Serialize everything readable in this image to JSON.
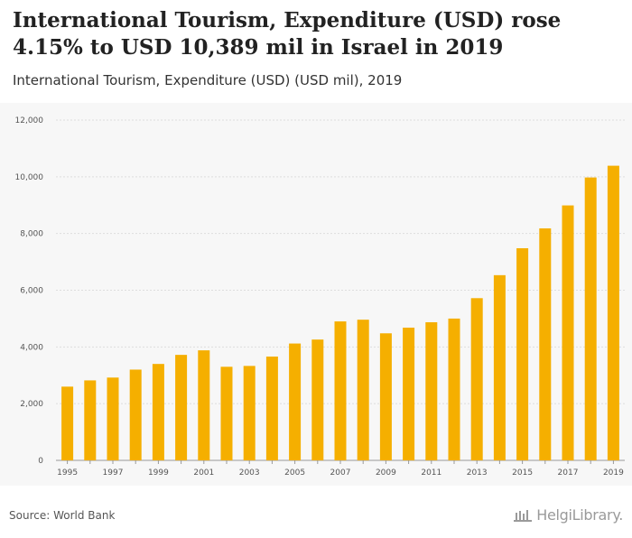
{
  "header": {
    "title": "International Tourism, Expenditure (USD) rose 4.15% to USD 10,389 mil in Israel in 2019",
    "subtitle": "International Tourism, Expenditure (USD) (USD mil), 2019"
  },
  "footer": {
    "source": "Source: World Bank",
    "brand": "HelgiLibrary."
  },
  "colors": {
    "bar": "#F5AF00",
    "grid": "#dddddd",
    "background": "#f7f7f7"
  },
  "chart_data": {
    "type": "bar",
    "title": "International Tourism, Expenditure (USD) (USD mil), 2019",
    "xlabel": "",
    "ylabel": "USD mil",
    "ylim": [
      0,
      12000
    ],
    "yticks": [
      0,
      2000,
      4000,
      6000,
      8000,
      10000,
      12000
    ],
    "ytick_labels": [
      "0",
      "2,000",
      "4,000",
      "6,000",
      "8,000",
      "10,000",
      "12,000"
    ],
    "categories": [
      "1995",
      "1996",
      "1997",
      "1998",
      "1999",
      "2000",
      "2001",
      "2002",
      "2003",
      "2004",
      "2005",
      "2006",
      "2007",
      "2008",
      "2009",
      "2010",
      "2011",
      "2012",
      "2013",
      "2014",
      "2015",
      "2016",
      "2017",
      "2018",
      "2019"
    ],
    "shown_x_labels": [
      "1995",
      "1997",
      "1999",
      "2001",
      "2003",
      "2005",
      "2007",
      "2009",
      "2011",
      "2013",
      "2015",
      "2017",
      "2019"
    ],
    "values": [
      2600,
      2820,
      2920,
      3200,
      3400,
      3720,
      3880,
      3300,
      3330,
      3660,
      4120,
      4260,
      4900,
      4960,
      4480,
      4680,
      4870,
      5000,
      5720,
      6530,
      7480,
      8180,
      8990,
      9975,
      10389
    ],
    "grid": true,
    "legend": "none"
  }
}
